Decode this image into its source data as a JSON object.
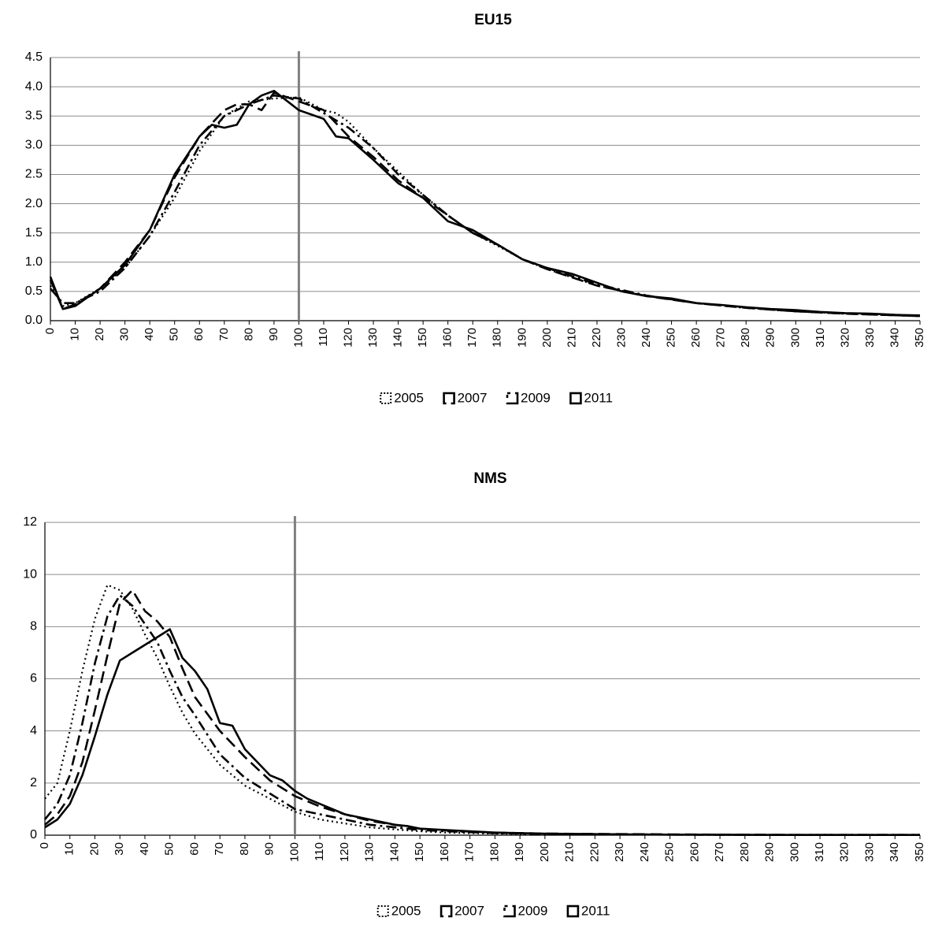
{
  "chart_data": [
    {
      "type": "line",
      "title": "EU15",
      "xlabel": "",
      "ylabel": "",
      "ylim": [
        0,
        4.5
      ],
      "yticks": [
        "0.0",
        "0.5",
        "1.0",
        "1.5",
        "2.0",
        "2.5",
        "3.0",
        "3.5",
        "4.0",
        "4.5"
      ],
      "xticks": [
        "0",
        "10",
        "20",
        "30",
        "40",
        "50",
        "60",
        "70",
        "80",
        "90",
        "100",
        "110",
        "120",
        "130",
        "140",
        "150",
        "160",
        "170",
        "180",
        "190",
        "200",
        "210",
        "220",
        "230",
        "240",
        "250",
        "260",
        "270",
        "280",
        "290",
        "300",
        "310",
        "320",
        "330",
        "340",
        "350"
      ],
      "xlim": [
        0,
        350
      ],
      "reference_line_x": 100,
      "grid": "horizontal",
      "legend_position": "bottom",
      "series": [
        {
          "name": "2005",
          "style": "dotted",
          "x": [
            0,
            5,
            10,
            20,
            30,
            40,
            50,
            60,
            70,
            80,
            90,
            100,
            110,
            115,
            120,
            130,
            140,
            150,
            160,
            170,
            180,
            190,
            200,
            220,
            240,
            260,
            280,
            300,
            320,
            350
          ],
          "values": [
            0.6,
            0.25,
            0.3,
            0.55,
            0.9,
            1.45,
            2.1,
            2.9,
            3.5,
            3.75,
            3.8,
            3.82,
            3.6,
            3.55,
            3.4,
            2.95,
            2.55,
            2.15,
            1.8,
            1.5,
            1.28,
            1.05,
            0.88,
            0.6,
            0.42,
            0.3,
            0.22,
            0.16,
            0.12,
            0.08
          ]
        },
        {
          "name": "2007",
          "style": "long-dash",
          "x": [
            0,
            5,
            10,
            20,
            30,
            40,
            50,
            60,
            70,
            75,
            80,
            85,
            90,
            100,
            110,
            120,
            130,
            140,
            150,
            160,
            170,
            180,
            190,
            200,
            220,
            240,
            260,
            280,
            300,
            320,
            350
          ],
          "values": [
            0.7,
            0.2,
            0.28,
            0.55,
            1.0,
            1.55,
            2.45,
            3.15,
            3.6,
            3.7,
            3.7,
            3.6,
            3.9,
            3.75,
            3.6,
            3.15,
            2.8,
            2.4,
            2.1,
            1.8,
            1.5,
            1.3,
            1.05,
            0.88,
            0.6,
            0.42,
            0.3,
            0.22,
            0.16,
            0.12,
            0.08
          ]
        },
        {
          "name": "2009",
          "style": "dash-dot",
          "x": [
            0,
            5,
            10,
            20,
            30,
            40,
            50,
            60,
            70,
            80,
            90,
            100,
            110,
            120,
            130,
            140,
            150,
            160,
            170,
            180,
            190,
            200,
            220,
            240,
            260,
            280,
            300,
            320,
            350
          ],
          "values": [
            0.55,
            0.3,
            0.3,
            0.5,
            0.9,
            1.45,
            2.2,
            3.0,
            3.5,
            3.7,
            3.85,
            3.8,
            3.55,
            3.3,
            2.95,
            2.5,
            2.15,
            1.8,
            1.5,
            1.3,
            1.05,
            0.9,
            0.62,
            0.43,
            0.3,
            0.22,
            0.16,
            0.12,
            0.08
          ]
        },
        {
          "name": "2011",
          "style": "solid",
          "x": [
            0,
            5,
            10,
            20,
            30,
            40,
            50,
            60,
            65,
            70,
            75,
            80,
            85,
            90,
            100,
            110,
            115,
            120,
            130,
            140,
            142,
            150,
            160,
            170,
            180,
            190,
            200,
            210,
            220,
            230,
            240,
            250,
            260,
            270,
            280,
            290,
            300,
            310,
            320,
            330,
            340,
            350
          ],
          "values": [
            0.75,
            0.2,
            0.25,
            0.55,
            0.95,
            1.55,
            2.5,
            3.15,
            3.35,
            3.3,
            3.35,
            3.7,
            3.85,
            3.93,
            3.6,
            3.45,
            3.15,
            3.12,
            2.75,
            2.35,
            2.3,
            2.1,
            1.7,
            1.55,
            1.3,
            1.05,
            0.9,
            0.8,
            0.65,
            0.5,
            0.42,
            0.38,
            0.3,
            0.27,
            0.23,
            0.2,
            0.18,
            0.15,
            0.13,
            0.12,
            0.1,
            0.09
          ]
        }
      ]
    },
    {
      "type": "line",
      "title": "NMS",
      "xlabel": "",
      "ylabel": "",
      "ylim": [
        0,
        12
      ],
      "yticks": [
        "0",
        "2",
        "4",
        "6",
        "8",
        "10",
        "12"
      ],
      "xticks": [
        "0",
        "10",
        "20",
        "30",
        "40",
        "50",
        "60",
        "70",
        "80",
        "90",
        "100",
        "110",
        "120",
        "130",
        "140",
        "150",
        "160",
        "170",
        "180",
        "190",
        "200",
        "210",
        "220",
        "230",
        "240",
        "250",
        "260",
        "270",
        "280",
        "290",
        "300",
        "310",
        "320",
        "330",
        "340",
        "350"
      ],
      "xlim": [
        0,
        350
      ],
      "reference_line_x": 100,
      "grid": "horizontal",
      "legend_position": "bottom",
      "series": [
        {
          "name": "2005",
          "style": "dotted",
          "x": [
            0,
            5,
            10,
            15,
            20,
            25,
            30,
            35,
            40,
            45,
            50,
            55,
            60,
            70,
            80,
            90,
            100,
            110,
            120,
            130,
            140,
            150,
            160,
            180,
            200,
            250,
            300,
            350
          ],
          "values": [
            1.4,
            2.0,
            4.0,
            6.3,
            8.3,
            9.6,
            9.4,
            8.7,
            7.7,
            6.8,
            5.7,
            4.7,
            3.9,
            2.7,
            1.9,
            1.4,
            0.9,
            0.6,
            0.45,
            0.3,
            0.22,
            0.15,
            0.1,
            0.06,
            0.04,
            0.02,
            0.01,
            0.01
          ]
        },
        {
          "name": "2007",
          "style": "long-dash",
          "x": [
            0,
            5,
            10,
            15,
            20,
            25,
            30,
            35,
            40,
            45,
            50,
            55,
            60,
            70,
            80,
            90,
            100,
            110,
            120,
            130,
            140,
            150,
            160,
            180,
            200,
            250,
            300,
            350
          ],
          "values": [
            0.4,
            0.8,
            1.5,
            2.8,
            4.8,
            6.9,
            8.9,
            9.4,
            8.6,
            8.2,
            7.6,
            6.4,
            5.3,
            4.0,
            3.0,
            2.1,
            1.5,
            1.1,
            0.8,
            0.55,
            0.4,
            0.25,
            0.18,
            0.1,
            0.06,
            0.03,
            0.01,
            0.01
          ]
        },
        {
          "name": "2009",
          "style": "dash-dot",
          "x": [
            0,
            5,
            10,
            15,
            20,
            25,
            30,
            35,
            40,
            45,
            50,
            55,
            60,
            70,
            80,
            90,
            100,
            110,
            120,
            130,
            140,
            150,
            160,
            180,
            200,
            250,
            300,
            350
          ],
          "values": [
            0.6,
            1.2,
            2.3,
            4.3,
            6.6,
            8.4,
            9.2,
            8.8,
            8.1,
            7.4,
            6.3,
            5.3,
            4.6,
            3.1,
            2.2,
            1.6,
            1.0,
            0.8,
            0.6,
            0.4,
            0.3,
            0.2,
            0.15,
            0.08,
            0.05,
            0.02,
            0.01,
            0.01
          ]
        },
        {
          "name": "2011",
          "style": "solid",
          "x": [
            0,
            5,
            10,
            15,
            20,
            25,
            30,
            35,
            40,
            45,
            50,
            55,
            60,
            65,
            70,
            75,
            80,
            85,
            90,
            95,
            100,
            105,
            110,
            120,
            130,
            140,
            145,
            150,
            160,
            170,
            180,
            190,
            200,
            220,
            250,
            300,
            350
          ],
          "values": [
            0.3,
            0.6,
            1.2,
            2.3,
            3.8,
            5.4,
            6.7,
            7.0,
            7.3,
            7.6,
            7.9,
            6.8,
            6.3,
            5.6,
            4.3,
            4.2,
            3.3,
            2.8,
            2.3,
            2.1,
            1.7,
            1.4,
            1.2,
            0.8,
            0.6,
            0.4,
            0.35,
            0.25,
            0.2,
            0.15,
            0.1,
            0.08,
            0.06,
            0.04,
            0.02,
            0.01,
            0.01
          ]
        }
      ]
    }
  ]
}
